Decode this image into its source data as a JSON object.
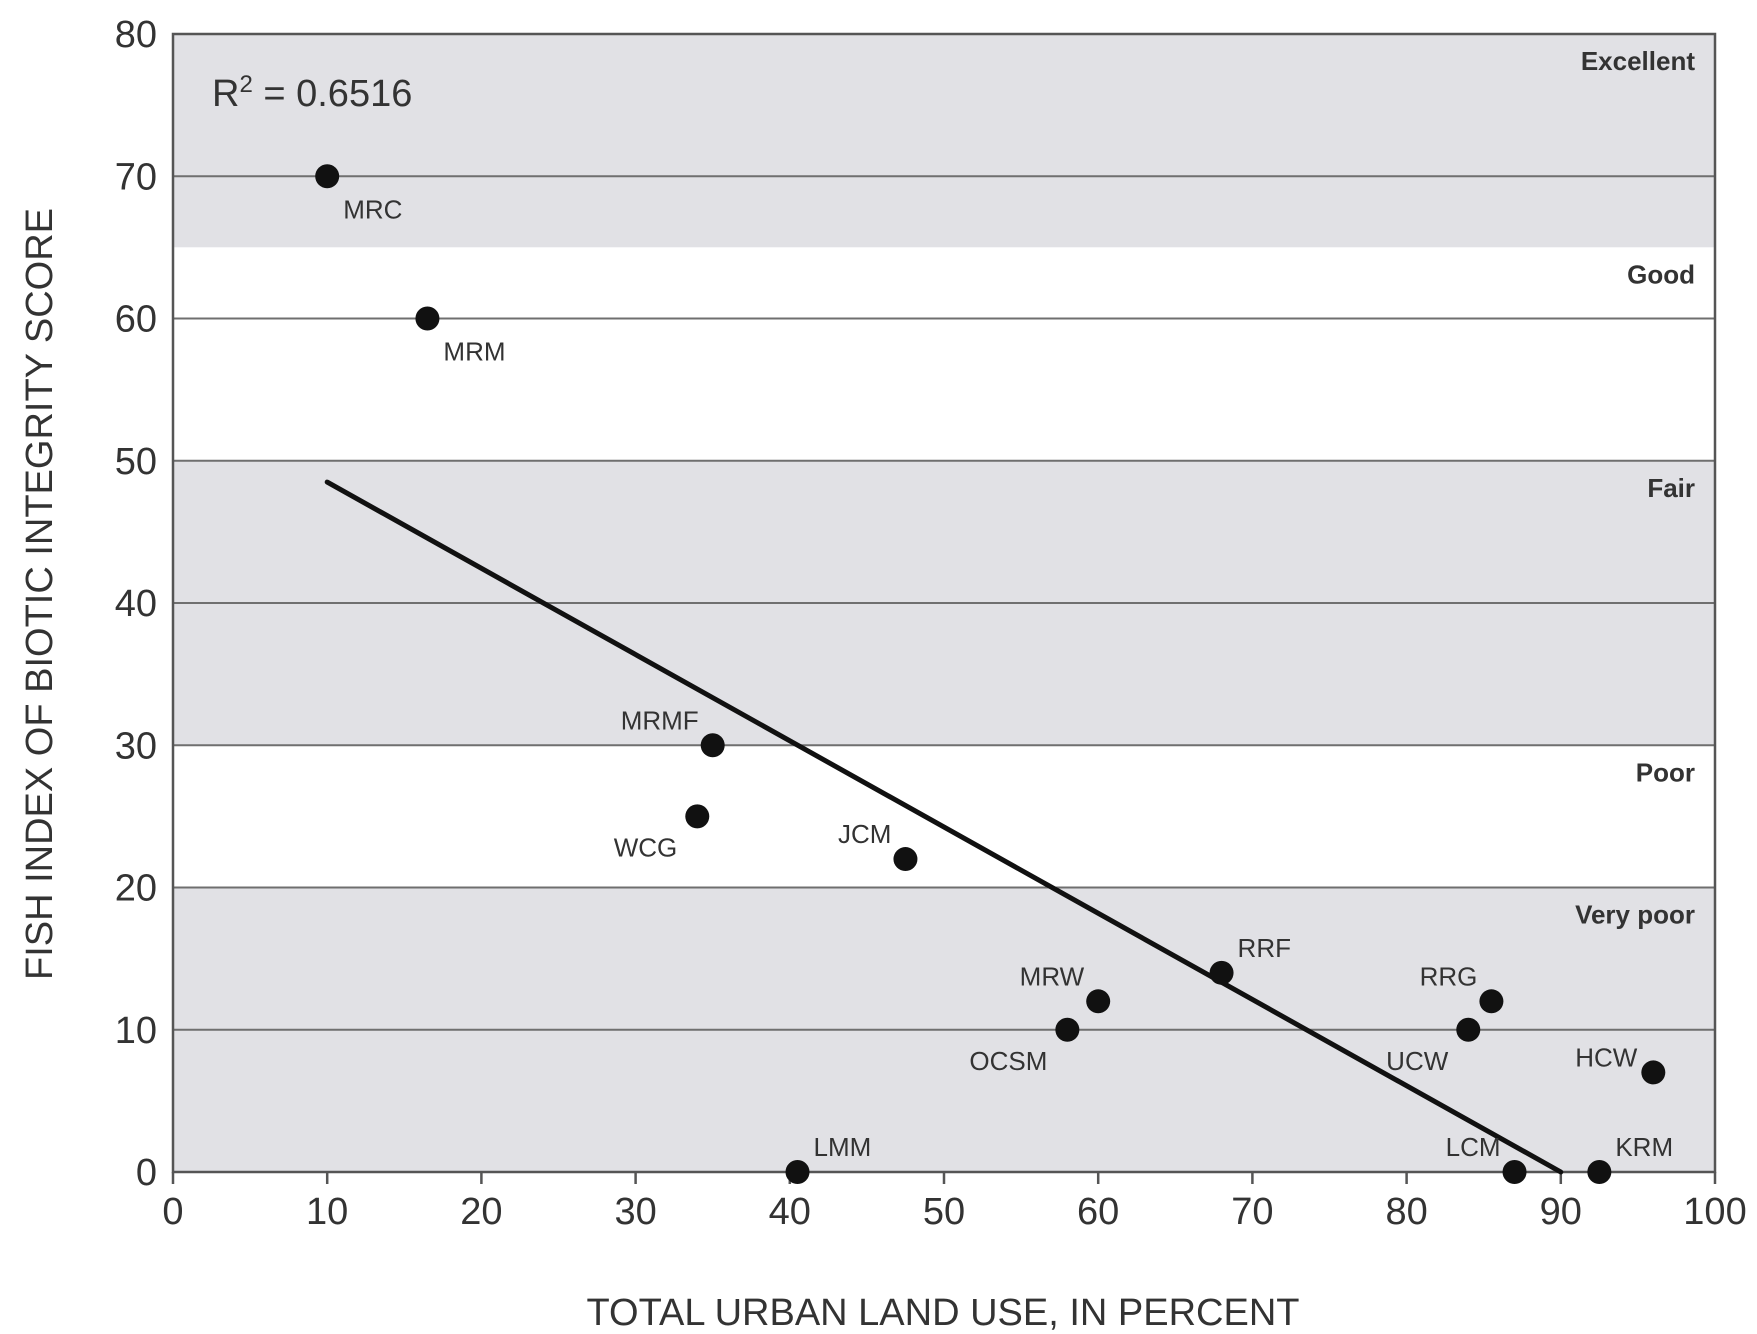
{
  "chart_data": {
    "type": "scatter",
    "xlabel": "TOTAL URBAN LAND USE, IN PERCENT",
    "ylabel": "FISH INDEX OF BIOTIC INTEGRITY SCORE",
    "xlim": [
      0,
      100
    ],
    "ylim": [
      0,
      80
    ],
    "x_ticks": [
      0,
      10,
      20,
      30,
      40,
      50,
      60,
      70,
      80,
      90,
      100
    ],
    "y_ticks": [
      0,
      10,
      20,
      30,
      40,
      50,
      60,
      70,
      80
    ],
    "grid": "horizontal",
    "annotation": {
      "text_main": "R",
      "text_sup": "2",
      "text_rest": " = 0.6516"
    },
    "bands": [
      {
        "label": "Excellent",
        "from": 65,
        "to": 80,
        "color": "#e1e1e5"
      },
      {
        "label": "Good",
        "from": 50,
        "to": 65,
        "color": "#ffffff"
      },
      {
        "label": "Fair",
        "from": 30,
        "to": 50,
        "color": "#e1e1e5"
      },
      {
        "label": "Poor",
        "from": 20,
        "to": 30,
        "color": "#ffffff"
      },
      {
        "label": "Very poor",
        "from": 0,
        "to": 20,
        "color": "#e1e1e5"
      }
    ],
    "points": [
      {
        "label": "MRC",
        "x": 10,
        "y": 70,
        "anchor": "below-right"
      },
      {
        "label": "MRM",
        "x": 16.5,
        "y": 60,
        "anchor": "below-right"
      },
      {
        "label": "MRMF",
        "x": 35,
        "y": 30,
        "anchor": "above-left"
      },
      {
        "label": "WCG",
        "x": 34,
        "y": 25,
        "anchor": "below-left"
      },
      {
        "label": "JCM",
        "x": 47.5,
        "y": 22,
        "anchor": "above-left"
      },
      {
        "label": "LMM",
        "x": 40.5,
        "y": 0,
        "anchor": "above-right"
      },
      {
        "label": "OCSM",
        "x": 58,
        "y": 10,
        "anchor": "below-left"
      },
      {
        "label": "MRW",
        "x": 60,
        "y": 12,
        "anchor": "above-left"
      },
      {
        "label": "RRF",
        "x": 68,
        "y": 14,
        "anchor": "above-right"
      },
      {
        "label": "RRG",
        "x": 85.5,
        "y": 12,
        "anchor": "above-left"
      },
      {
        "label": "UCW",
        "x": 84,
        "y": 10,
        "anchor": "below-left"
      },
      {
        "label": "HCW",
        "x": 96,
        "y": 7,
        "anchor": "left"
      },
      {
        "label": "LCM",
        "x": 87,
        "y": 0,
        "anchor": "above-left"
      },
      {
        "label": "KRM",
        "x": 92.5,
        "y": 0,
        "anchor": "above-right"
      }
    ],
    "trendline": {
      "x": [
        10,
        90
      ],
      "y": [
        48.5,
        0
      ]
    }
  }
}
